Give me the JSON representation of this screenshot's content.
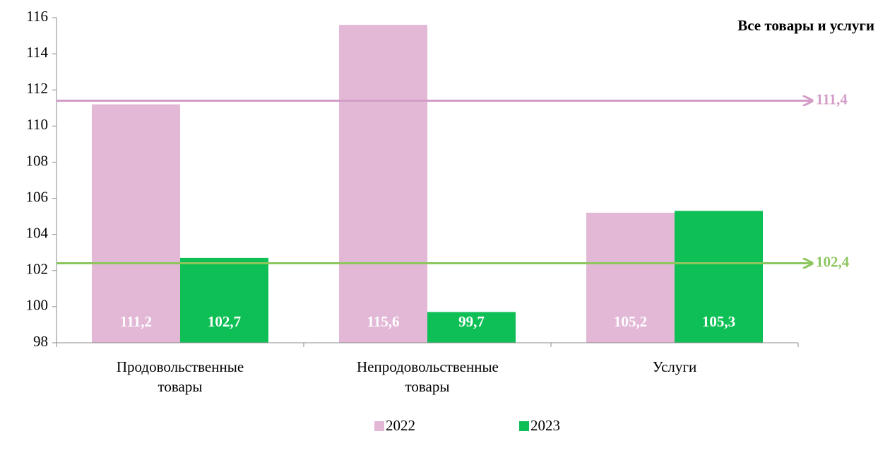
{
  "chart_data": {
    "type": "bar",
    "title": "Все товары и услуги",
    "categories": [
      "Продовольственные товары",
      "Непродовольственные товары",
      "Услуги"
    ],
    "series": [
      {
        "name": "2022",
        "color": "#e2b8d6",
        "values": [
          111.2,
          115.6,
          105.2
        ],
        "value_labels": [
          "111,2",
          "115,6",
          "105,2"
        ]
      },
      {
        "name": "2023",
        "color": "#0dbf55",
        "values": [
          102.7,
          99.7,
          105.3
        ],
        "value_labels": [
          "102,7",
          "99,7",
          "105,3"
        ]
      }
    ],
    "reference_lines": [
      {
        "value": 111.4,
        "label": "111,4",
        "color": "#d39dc7"
      },
      {
        "value": 102.4,
        "label": "102,4",
        "color": "#8dc65f"
      }
    ],
    "ylim": [
      98,
      116
    ],
    "yticks": [
      98,
      100,
      102,
      104,
      106,
      108,
      110,
      112,
      114,
      116
    ],
    "grid": false,
    "legend": "bottom"
  }
}
